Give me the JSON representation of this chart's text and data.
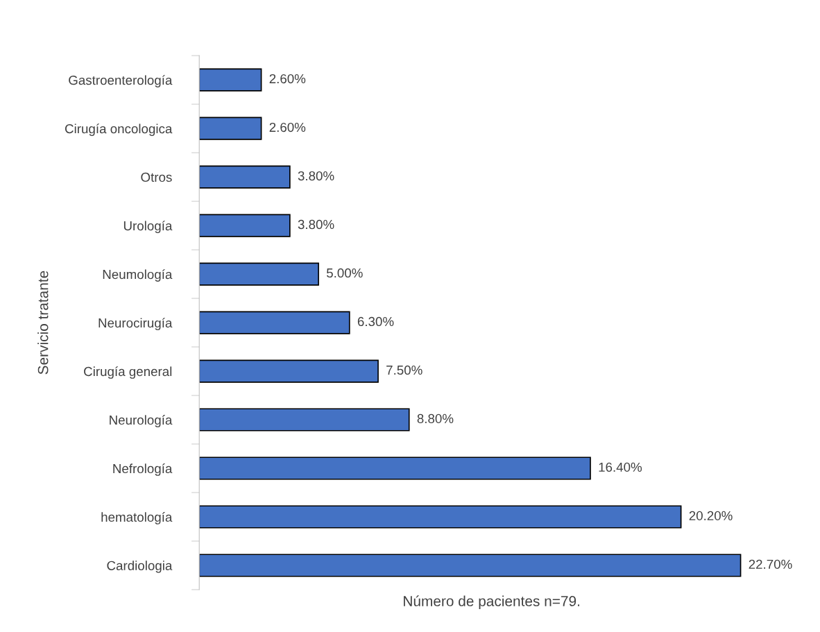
{
  "chart_data": {
    "type": "bar",
    "orientation": "horizontal",
    "xlabel": "Número de pacientes n=79.",
    "ylabel": "Servicio tratante",
    "categories": [
      "Gastroenterología",
      "Cirugía oncologica",
      "Otros",
      "Urología",
      "Neumología",
      "Neurocirugía",
      "Cirugía general",
      "Neurología",
      "Nefrología",
      "hematología",
      "Cardiologia"
    ],
    "values": [
      2.6,
      2.6,
      3.8,
      3.8,
      5.0,
      6.3,
      7.5,
      8.8,
      16.4,
      20.2,
      22.7
    ],
    "value_labels": [
      "2.60%",
      "2.60%",
      "3.80%",
      "3.80%",
      "5.00%",
      "6.30%",
      "7.50%",
      "8.80%",
      "16.40%",
      "20.20%",
      "22.70%"
    ],
    "color": "#4472c4",
    "tick_labels": "y",
    "grid": false
  }
}
